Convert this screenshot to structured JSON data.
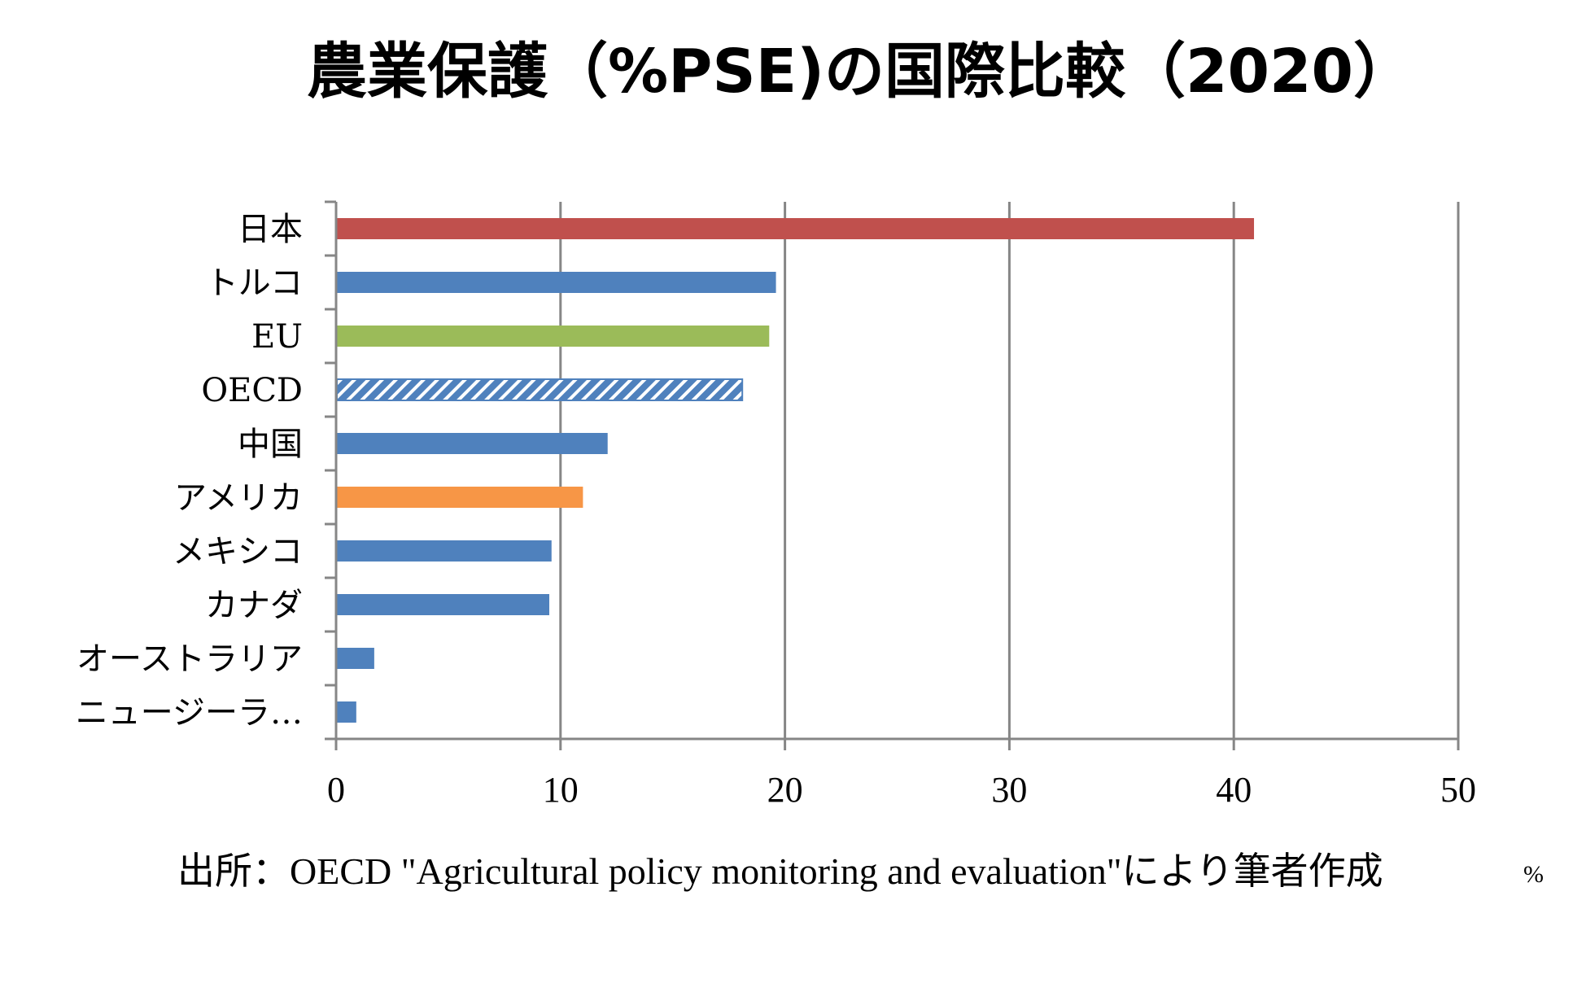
{
  "chart_data": {
    "type": "bar",
    "orientation": "horizontal",
    "title": "農業保護（%PSE)の国際比較（2020）",
    "xlabel": "%",
    "ylabel": "",
    "xlim": [
      0,
      50
    ],
    "xticks": [
      0,
      10,
      20,
      30,
      40,
      50
    ],
    "grid": true,
    "legend": "none",
    "categories": [
      "日本",
      "トルコ",
      "EU",
      "OECD",
      "中国",
      "アメリカ",
      "メキシコ",
      "カナダ",
      "オーストラリア",
      "ニュージーラ…"
    ],
    "values": [
      40.9,
      19.6,
      19.3,
      18.1,
      12.1,
      11.0,
      9.6,
      9.5,
      1.7,
      0.9
    ],
    "bar_colors": [
      "#C0504D",
      "#4F81BD",
      "#9BBB59",
      "#4F81BD",
      "#4F81BD",
      "#F79646",
      "#4F81BD",
      "#4F81BD",
      "#4F81BD",
      "#4F81BD"
    ],
    "bar_patterns": [
      "solid",
      "solid",
      "solid",
      "hatched",
      "solid",
      "solid",
      "solid",
      "solid",
      "solid",
      "solid"
    ],
    "source": "出所：OECD \"Agricultural policy monitoring and evaluation\"により筆者作成"
  },
  "colors": {
    "grid": "#868686",
    "text": "#000000"
  }
}
